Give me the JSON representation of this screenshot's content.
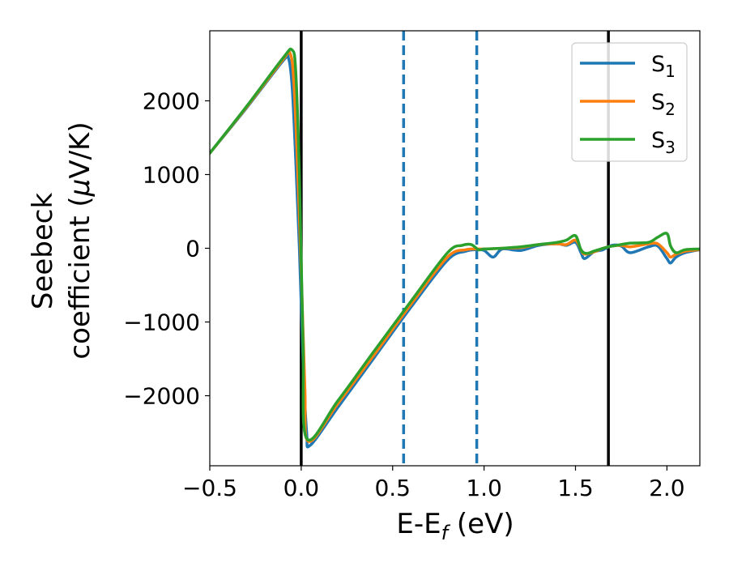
{
  "chart_data": {
    "type": "line",
    "title": "",
    "xlabel": {
      "main": "E-E",
      "sub": "f",
      "unit": " (eV)"
    },
    "ylabel": {
      "line1": "Seebeck",
      "line2_prefix": "coefficient  (",
      "mu": "μ",
      "line2_suffix": "V/K)"
    },
    "xlim": [
      -0.5,
      2.18
    ],
    "ylim": [
      -2950,
      2950
    ],
    "xticks": [
      -0.5,
      0.0,
      0.5,
      1.0,
      1.5,
      2.0
    ],
    "xtick_labels": [
      "−0.5",
      "0.0",
      "0.5",
      "1.0",
      "1.5",
      "2.0"
    ],
    "yticks": [
      -2000,
      -1000,
      0,
      1000,
      2000
    ],
    "ytick_labels": [
      "−2000",
      "−1000",
      "0",
      "1000",
      "2000"
    ],
    "grid": false,
    "legend_position": "top-right",
    "vlines": [
      {
        "x": 0.0,
        "style": "solid",
        "color": "#000000"
      },
      {
        "x": 1.68,
        "style": "solid",
        "color": "#000000"
      },
      {
        "x": 0.56,
        "style": "dashed",
        "color": "#1f77b4"
      },
      {
        "x": 0.96,
        "style": "dashed",
        "color": "#1f77b4"
      }
    ],
    "series": [
      {
        "name": "S",
        "sub": "1",
        "color": "#1f77b4",
        "x": [
          -0.5,
          -0.3,
          -0.1,
          -0.07,
          -0.05,
          -0.03,
          -0.01,
          0.01,
          0.03,
          0.05,
          0.2,
          0.4,
          0.6,
          0.8,
          0.9,
          0.95,
          1.0,
          1.05,
          1.1,
          1.2,
          1.3,
          1.4,
          1.45,
          1.5,
          1.53,
          1.55,
          1.6,
          1.65,
          1.7,
          1.75,
          1.8,
          1.9,
          1.95,
          2.0,
          2.02,
          2.05,
          2.1,
          2.18
        ],
        "y": [
          1290,
          1900,
          2540,
          2580,
          2200,
          1200,
          0,
          -1500,
          -2500,
          -2670,
          -2160,
          -1480,
          -800,
          -160,
          -40,
          -20,
          -30,
          -120,
          -10,
          -30,
          40,
          60,
          40,
          80,
          -60,
          -140,
          -50,
          -20,
          40,
          30,
          -60,
          20,
          30,
          -140,
          -200,
          -120,
          -60,
          -20
        ]
      },
      {
        "name": "S",
        "sub": "2",
        "color": "#ff7f0e",
        "x": [
          -0.5,
          -0.3,
          -0.1,
          -0.06,
          -0.04,
          -0.02,
          0.0,
          0.02,
          0.04,
          0.2,
          0.4,
          0.6,
          0.8,
          0.9,
          0.95,
          1.0,
          1.1,
          1.2,
          1.3,
          1.4,
          1.45,
          1.5,
          1.53,
          1.55,
          1.6,
          1.65,
          1.7,
          1.75,
          1.8,
          1.9,
          1.95,
          2.0,
          2.02,
          2.05,
          2.1,
          2.18
        ],
        "y": [
          1290,
          1910,
          2560,
          2640,
          2250,
          1100,
          -300,
          -1900,
          -2620,
          -2110,
          -1440,
          -760,
          -120,
          -20,
          -10,
          -10,
          0,
          10,
          50,
          60,
          50,
          110,
          -20,
          -80,
          -50,
          0,
          30,
          40,
          20,
          60,
          60,
          -60,
          -120,
          -80,
          -40,
          -20
        ]
      },
      {
        "name": "S",
        "sub": "3",
        "color": "#2ca02c",
        "x": [
          -0.5,
          -0.3,
          -0.1,
          -0.05,
          -0.03,
          -0.01,
          0.01,
          0.03,
          0.2,
          0.4,
          0.6,
          0.8,
          0.88,
          0.93,
          0.97,
          1.0,
          1.1,
          1.2,
          1.3,
          1.4,
          1.45,
          1.5,
          1.53,
          1.56,
          1.6,
          1.65,
          1.7,
          1.75,
          1.8,
          1.9,
          1.95,
          2.0,
          2.02,
          2.05,
          2.1,
          2.18
        ],
        "y": [
          1290,
          1920,
          2580,
          2690,
          2400,
          1000,
          -1300,
          -2580,
          -2070,
          -1390,
          -720,
          -60,
          40,
          50,
          -20,
          -10,
          0,
          20,
          50,
          80,
          110,
          170,
          -20,
          -70,
          -40,
          0,
          30,
          50,
          70,
          80,
          150,
          200,
          30,
          -60,
          -20,
          -10
        ]
      }
    ]
  }
}
